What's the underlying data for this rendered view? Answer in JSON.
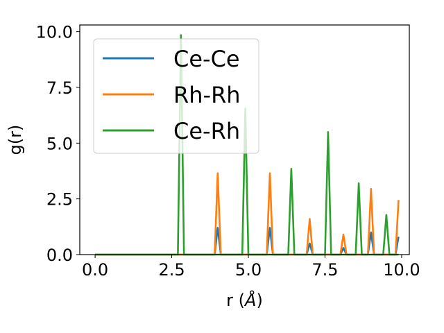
{
  "chart_data": {
    "type": "line",
    "title": "",
    "xlabel": "r (",
    "xlabel_symbol": "Å",
    "xlabel_close": ")",
    "ylabel": "g(r)",
    "xlim": [
      -0.5,
      10.25
    ],
    "ylim": [
      0,
      10.3
    ],
    "xticks": [
      0.0,
      2.5,
      5.0,
      7.5,
      10.0
    ],
    "xtick_labels": [
      "0.0",
      "2.5",
      "5.0",
      "7.5",
      "10.0"
    ],
    "yticks": [
      0.0,
      2.5,
      5.0,
      7.5,
      10.0
    ],
    "ytick_labels": [
      "0.0",
      "2.5",
      "5.0",
      "7.5",
      "10.0"
    ],
    "grid": false,
    "legend_position": "upper-left",
    "series": [
      {
        "name": "Ce-Ce",
        "color": "#1f77b4",
        "x": [
          0,
          3.9,
          4.0,
          4.1,
          5.6,
          5.7,
          5.8,
          6.9,
          7.0,
          7.1,
          8.0,
          8.1,
          8.2,
          8.9,
          9.0,
          9.1,
          9.8,
          9.9
        ],
        "y": [
          0,
          0,
          1.2,
          0,
          0,
          1.2,
          0,
          0,
          0.5,
          0,
          0,
          0.3,
          0,
          0,
          1.0,
          0,
          0,
          0.8
        ]
      },
      {
        "name": "Rh-Rh",
        "color": "#ff7f0e",
        "x": [
          0,
          3.9,
          4.0,
          4.1,
          5.6,
          5.7,
          5.8,
          6.9,
          7.0,
          7.1,
          8.0,
          8.1,
          8.2,
          8.9,
          9.0,
          9.1,
          9.8,
          9.9
        ],
        "y": [
          0,
          0,
          3.65,
          0,
          0,
          3.65,
          0,
          0,
          1.6,
          0,
          0,
          0.9,
          0,
          0,
          2.95,
          0,
          0,
          2.45
        ]
      },
      {
        "name": "Ce-Rh",
        "color": "#2ca02c",
        "x": [
          0,
          2.7,
          2.8,
          2.9,
          4.8,
          4.9,
          5.0,
          6.3,
          6.4,
          6.5,
          7.5,
          7.6,
          7.7,
          8.5,
          8.6,
          8.7,
          9.4,
          9.5,
          9.6,
          9.9
        ],
        "y": [
          0,
          0,
          9.85,
          0,
          0,
          6.55,
          0,
          0,
          3.85,
          0,
          0,
          5.5,
          0,
          0,
          3.2,
          0,
          0,
          1.78,
          0,
          0
        ]
      }
    ]
  }
}
